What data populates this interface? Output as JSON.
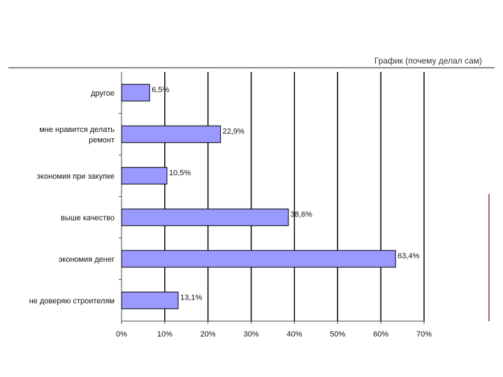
{
  "header": {
    "title": "График (почему делал сам)"
  },
  "chart_data": {
    "type": "bar",
    "orientation": "horizontal",
    "categories": [
      [
        "другое"
      ],
      [
        "мне нравится делать",
        "ремонт"
      ],
      [
        "экономия при закупке"
      ],
      [
        "выше качество"
      ],
      [
        "экономия денег"
      ],
      [
        "не доверяю строителям"
      ]
    ],
    "values": [
      6.5,
      22.9,
      10.5,
      38.6,
      63.4,
      13.1
    ],
    "value_labels": [
      "6,5%",
      "22,9%",
      "10,5%",
      "38,6%",
      "63,4%",
      "13,1%"
    ],
    "x_ticks": [
      0,
      10,
      20,
      30,
      40,
      50,
      60,
      70
    ],
    "x_tick_labels": [
      "0%",
      "10%",
      "20%",
      "30%",
      "40%",
      "50%",
      "60%",
      "70%"
    ],
    "xlim": [
      0,
      70
    ],
    "grid": true,
    "bar_color": "#9999ff"
  }
}
